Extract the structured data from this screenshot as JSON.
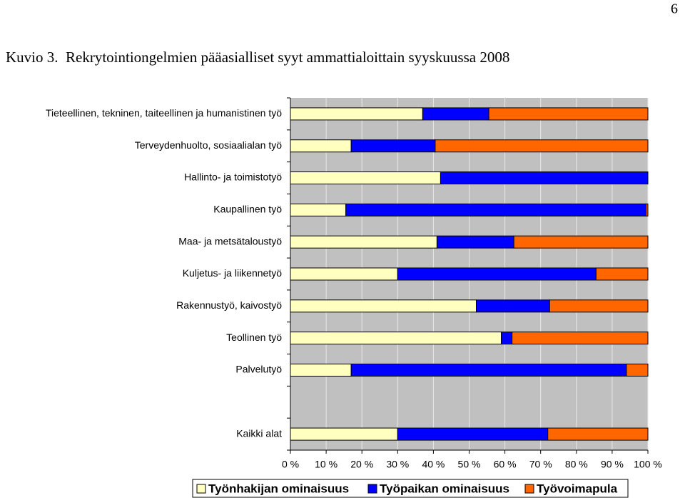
{
  "page": {
    "number": "6"
  },
  "chart_data": {
    "type": "bar",
    "orientation": "horizontal",
    "stacked": true,
    "title": "Kuvio 3.  Rekrytointiongelmien pääasialliset syyt ammattialoittain syyskuussa 2008",
    "categories": [
      "Tieteellinen, tekninen, taiteellinen ja humanistinen työ",
      "Terveydenhuolto, sosiaalialan työ",
      "Hallinto- ja toimistotyö",
      "Kaupallinen työ",
      "Maa- ja metsätaloustyö",
      "Kuljetus- ja liikennetyö",
      "Rakennustyö, kaivostyö",
      "Teollinen työ",
      "Palvelutyö",
      null,
      "Kaikki alat"
    ],
    "series": [
      {
        "name": "Työnhakijan ominaisuus",
        "color": "#ffffc0",
        "values": [
          37,
          17,
          42,
          15.5,
          41,
          30,
          52,
          59,
          17,
          null,
          30
        ]
      },
      {
        "name": "Työpaikan ominaisuus",
        "color": "#0000ff",
        "values": [
          18.5,
          23.5,
          58,
          84,
          21.5,
          55.5,
          20.5,
          3,
          77,
          null,
          42
        ]
      },
      {
        "name": "Työvoimapula",
        "color": "#ff6600",
        "values": [
          44.5,
          59.5,
          0,
          0.5,
          37.5,
          14.5,
          27.5,
          38,
          6,
          null,
          28
        ]
      }
    ],
    "xlim": [
      0,
      100
    ],
    "xticks": [
      {
        "value": 0,
        "label": "0 %"
      },
      {
        "value": 10,
        "label": "10 %"
      },
      {
        "value": 20,
        "label": "20 %"
      },
      {
        "value": 30,
        "label": "30 %"
      },
      {
        "value": 40,
        "label": "40 %"
      },
      {
        "value": 50,
        "label": "50 %"
      },
      {
        "value": 60,
        "label": "60 %"
      },
      {
        "value": 70,
        "label": "70 %"
      },
      {
        "value": 80,
        "label": "80 %"
      },
      {
        "value": 90,
        "label": "90 %"
      },
      {
        "value": 100,
        "label": "100 %"
      }
    ],
    "grid": true,
    "legend": "bottom"
  }
}
